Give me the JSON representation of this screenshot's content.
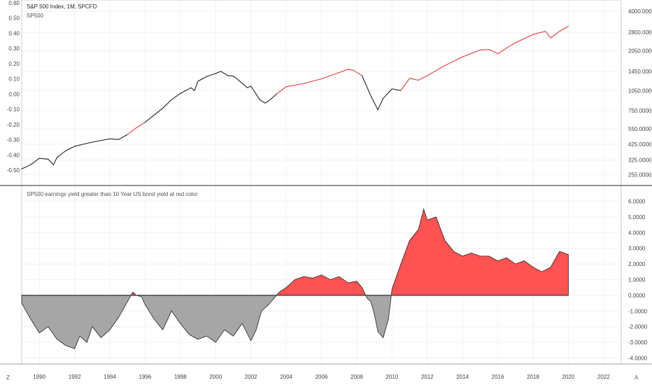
{
  "colors": {
    "price_normal": "#333333",
    "price_signal": "#e64a4a",
    "area_positive": "#ff5252",
    "area_negative": "#a6a6a6",
    "zero_line": "#333333",
    "grid": "#eef1f5"
  },
  "top_panel": {
    "title": "S&P 500 Index, 1M, SPCFD",
    "series_label": "SP500",
    "left_axis_ticks": [
      "0.60",
      "0.50",
      "0.40",
      "0.30",
      "0.20",
      "0.10",
      "0.00",
      "-0.10",
      "-0.20",
      "-0.30",
      "-0.40",
      "-0.50"
    ],
    "right_axis_ticks": [
      "4000.0000",
      "2800.0000",
      "2050.0000",
      "1450.0000",
      "1050.0000",
      "750.0000",
      "550.0000",
      "425.0000",
      "325.0000",
      "255.0000"
    ]
  },
  "bottom_panel": {
    "title": "SP500 earnings yield greater than 10 Year US bond yield at red color",
    "right_axis_ticks": [
      "6.0000",
      "5.0000",
      "4.0000",
      "3.0000",
      "2.0000",
      "1.0000",
      "0.0000",
      "-1.0000",
      "-2.0000",
      "-3.0000",
      "-4.0000"
    ]
  },
  "x_axis_ticks": [
    "1990",
    "1992",
    "1994",
    "1996",
    "1998",
    "2000",
    "2002",
    "2004",
    "2006",
    "2008",
    "2010",
    "2012",
    "2014",
    "2016",
    "2018",
    "2020",
    "2022"
  ],
  "corner_left": "Z",
  "corner_right": "A",
  "chart_data": [
    {
      "type": "line",
      "title": "S&P 500 Index, 1M, SPCFD",
      "series": [
        {
          "name": "SP500",
          "x": [
            1989.0,
            1989.5,
            1990.0,
            1990.5,
            1990.8,
            1991.0,
            1991.5,
            1992.0,
            1993.0,
            1994.0,
            1994.5,
            1995.0,
            1995.5,
            1996.0,
            1997.0,
            1997.5,
            1998.0,
            1998.6,
            1998.8,
            1999.0,
            1999.5,
            2000.0,
            2000.3,
            2000.7,
            2001.0,
            2001.3,
            2001.8,
            2002.0,
            2002.5,
            2002.8,
            2003.0,
            2003.5,
            2004.0,
            2005.0,
            2006.0,
            2007.0,
            2007.5,
            2007.8,
            2008.3,
            2008.8,
            2009.2,
            2009.5,
            2010.0,
            2010.5,
            2011.0,
            2011.5,
            2012.0,
            2013.0,
            2014.0,
            2015.0,
            2015.5,
            2016.0,
            2016.5,
            2017.0,
            2018.0,
            2018.7,
            2019.0,
            2019.5,
            2020.0
          ],
          "y": [
            280,
            300,
            335,
            330,
            300,
            340,
            380,
            410,
            440,
            465,
            460,
            500,
            560,
            615,
            780,
            900,
            1000,
            1100,
            1050,
            1230,
            1330,
            1400,
            1450,
            1350,
            1340,
            1250,
            1100,
            1130,
            900,
            850,
            880,
            1000,
            1120,
            1180,
            1280,
            1420,
            1500,
            1480,
            1350,
            960,
            760,
            920,
            1080,
            1050,
            1290,
            1250,
            1350,
            1600,
            1850,
            2080,
            2100,
            1950,
            2150,
            2350,
            2700,
            2850,
            2550,
            2850,
            3100
          ],
          "signal_color_ranges": [
            [
              1994.8,
              1996.0
            ],
            [
              2003.5,
              2008.3
            ],
            [
              2010.3,
              2020.0
            ]
          ]
        }
      ],
      "y_scale": "log",
      "ylim": [
        230,
        4500
      ],
      "xlim": [
        1989,
        2023
      ],
      "grid": true
    },
    {
      "type": "area",
      "title": "SP500 earnings yield greater than 10 Year US bond yield at red color",
      "series": [
        {
          "x": [
            1989.0,
            1989.5,
            1990.0,
            1990.5,
            1991.0,
            1991.5,
            1992.0,
            1992.3,
            1992.7,
            1993.0,
            1993.5,
            1994.0,
            1994.5,
            1995.0,
            1995.3,
            1995.5,
            1995.8,
            1996.0,
            1996.5,
            1997.0,
            1997.5,
            1998.0,
            1998.5,
            1999.0,
            1999.5,
            2000.0,
            2000.5,
            2001.0,
            2001.5,
            2002.0,
            2002.3,
            2002.6,
            2003.0,
            2003.3,
            2003.6,
            2004.0,
            2004.5,
            2005.0,
            2005.5,
            2006.0,
            2006.5,
            2007.0,
            2007.5,
            2008.0,
            2008.3,
            2008.6,
            2008.8,
            2009.0,
            2009.2,
            2009.5,
            2009.8,
            2010.0,
            2010.5,
            2011.0,
            2011.5,
            2011.8,
            2012.0,
            2012.5,
            2013.0,
            2013.5,
            2014.0,
            2014.5,
            2015.0,
            2015.5,
            2016.0,
            2016.5,
            2017.0,
            2017.5,
            2018.0,
            2018.5,
            2019.0,
            2019.5,
            2020.0
          ],
          "y": [
            -0.5,
            -1.5,
            -2.4,
            -2.0,
            -2.8,
            -3.2,
            -3.4,
            -2.6,
            -3.0,
            -2.0,
            -2.7,
            -2.2,
            -1.4,
            -0.4,
            0.2,
            0.0,
            -0.1,
            -0.6,
            -1.5,
            -2.2,
            -1.0,
            -1.8,
            -2.5,
            -2.8,
            -2.6,
            -3.0,
            -2.2,
            -2.6,
            -1.8,
            -2.9,
            -2.2,
            -1.0,
            -0.6,
            -0.2,
            0.2,
            0.5,
            1.0,
            1.2,
            1.1,
            1.3,
            1.0,
            1.2,
            0.8,
            0.9,
            0.5,
            -0.2,
            -0.4,
            -1.2,
            -2.3,
            -2.7,
            -1.5,
            0.4,
            2.0,
            3.5,
            4.2,
            5.5,
            4.8,
            5.0,
            3.5,
            2.8,
            2.5,
            2.7,
            2.5,
            2.5,
            2.2,
            2.4,
            2.0,
            2.2,
            1.8,
            1.5,
            1.8,
            2.8,
            2.6
          ]
        }
      ],
      "positive_color": "#ff5252",
      "negative_color": "#a6a6a6",
      "ylim": [
        -4.2,
        6.2
      ],
      "xlim": [
        1989,
        2023
      ],
      "grid": true
    }
  ]
}
